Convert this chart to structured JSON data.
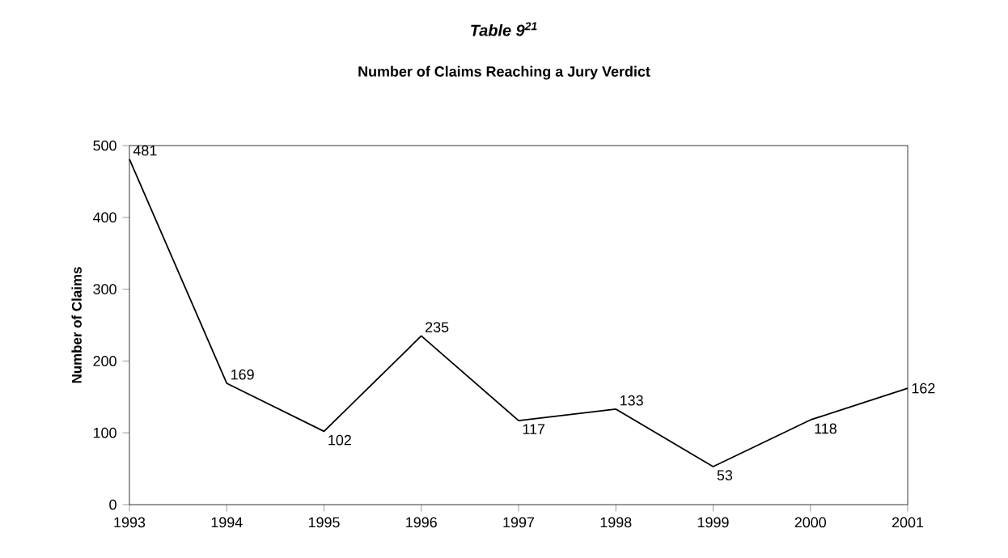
{
  "chart_data": {
    "type": "line",
    "title": "Table 9$^{21}$",
    "subtitle": "Number of Claims Reaching a Jury Verdict",
    "ylabel": "Number of Claims",
    "x": [
      1993,
      1994,
      1995,
      1996,
      1997,
      1998,
      1999,
      2000,
      2001
    ],
    "values": [
      481,
      169,
      102,
      235,
      117,
      133,
      53,
      118,
      162
    ],
    "color": "#000000",
    "xlim": [
      1993,
      2001
    ],
    "xticks": [
      1993,
      1994,
      1995,
      1996,
      1997,
      1998,
      1999,
      2000,
      2001
    ],
    "ylim": [
      0,
      500
    ],
    "yticks": [
      0,
      100,
      200,
      300,
      400,
      500
    ],
    "grid": false,
    "marker": "none",
    "line_style": "solid",
    "data_labels": true
  }
}
